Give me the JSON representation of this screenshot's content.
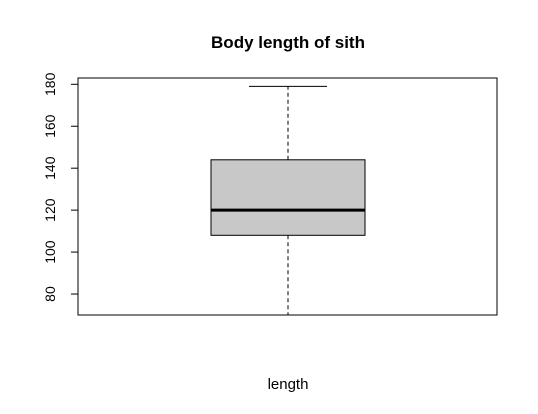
{
  "chart_data": {
    "type": "boxplot",
    "title": "Body length of sith",
    "xlabel": "length",
    "ylabel": "",
    "ylim": [
      70,
      183
    ],
    "yticks": [
      80,
      100,
      120,
      140,
      160,
      180
    ],
    "box": {
      "min": 70,
      "q1": 108,
      "median": 120,
      "q3": 144,
      "max": 179
    },
    "box_fill": "#c8c8c8",
    "line_color": "#000000"
  }
}
